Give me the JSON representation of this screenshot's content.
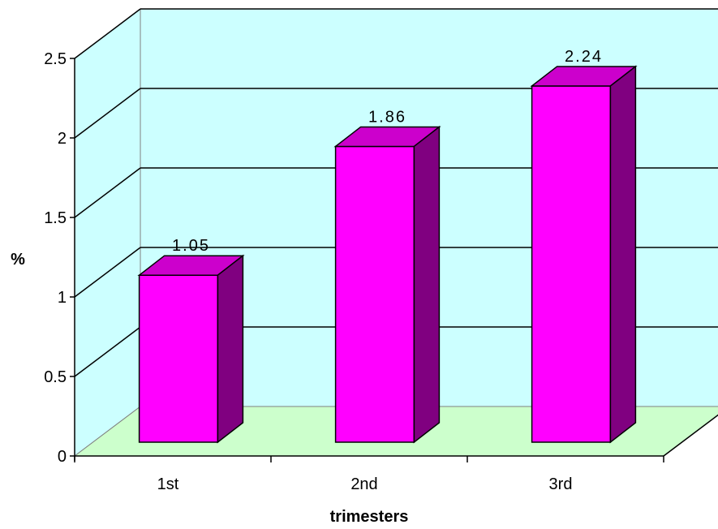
{
  "chart_data": {
    "type": "bar",
    "categories": [
      "1st",
      "2nd",
      "3rd"
    ],
    "values": [
      1.05,
      1.86,
      2.24
    ],
    "data_labels": [
      "1.05",
      "1.86",
      "2.24"
    ],
    "xlabel": "trimesters",
    "ylabel": "%",
    "ylim": [
      0,
      2.5
    ],
    "yticks": [
      0,
      0.5,
      1,
      1.5,
      2,
      2.5
    ],
    "ytick_labels": [
      "0",
      "0.5",
      "1",
      "1.5",
      "2",
      "2.5"
    ],
    "grid": true,
    "three_d": true,
    "colors": {
      "wall": "#ccffff",
      "floor": "#ccffcc",
      "bar_front": "#ff00ff",
      "bar_top": "#cc00cc",
      "bar_side": "#800080",
      "outline": "#000000",
      "wall_edge": "#808080"
    }
  }
}
